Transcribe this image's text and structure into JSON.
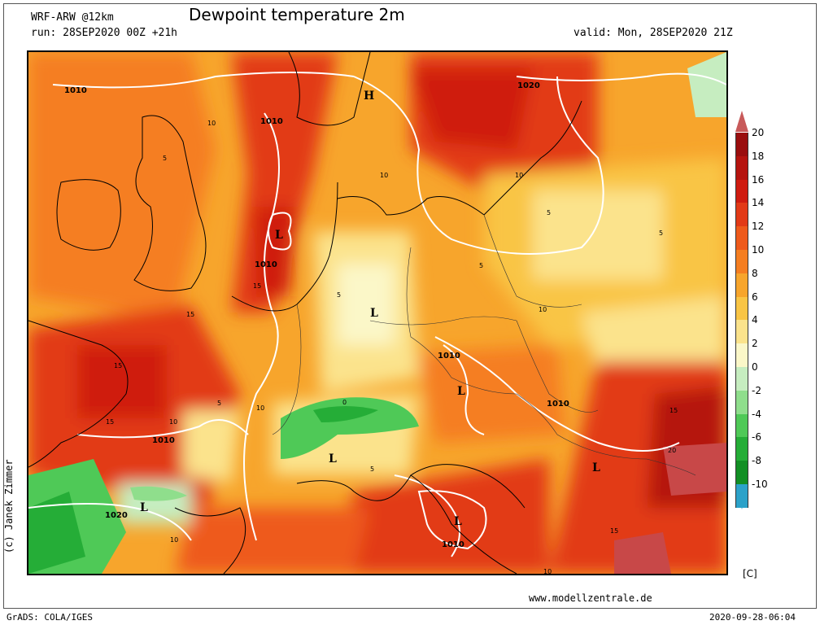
{
  "header": {
    "model": "WRF-ARW @12km",
    "title": "Dewpoint temperature 2m",
    "run": "run: 28SEP2020 00Z +21h",
    "valid": "valid: Mon, 28SEP2020 21Z"
  },
  "footer": {
    "website": "www.modellzentrale.de",
    "grads": "GrADS: COLA/IGES",
    "datetime": "2020-09-28-06:04",
    "copyright": "(c) Janek Zimmer"
  },
  "colorbar": {
    "unit": "[C]",
    "levels": [
      {
        "label": "20",
        "color": "#9a0e0e"
      },
      {
        "label": "18",
        "color": "#b5140f"
      },
      {
        "label": "16",
        "color": "#cf1c10"
      },
      {
        "label": "14",
        "color": "#e23a17"
      },
      {
        "label": "12",
        "color": "#ee5a1b"
      },
      {
        "label": "10",
        "color": "#f57e21"
      },
      {
        "label": "8",
        "color": "#f7a52c"
      },
      {
        "label": "6",
        "color": "#f9c545"
      },
      {
        "label": "4",
        "color": "#fbe38c"
      },
      {
        "label": "2",
        "color": "#fbf7c8"
      },
      {
        "label": "0",
        "color": "#c6edc0"
      },
      {
        "label": "-2",
        "color": "#8fde8c"
      },
      {
        "label": "-4",
        "color": "#4fc957"
      },
      {
        "label": "-6",
        "color": "#25ad37"
      },
      {
        "label": "-8",
        "color": "#128f24"
      },
      {
        "label": "-10",
        "color": "#2ca2c9"
      }
    ],
    "top_arrow_color": "#c85a5a",
    "bottom_arrow_color": "#3ea6cc"
  },
  "map": {
    "pressure_labels": [
      "1010",
      "1010",
      "1010",
      "1010",
      "1010",
      "1010",
      "1010",
      "1020",
      "1020",
      "1020"
    ],
    "contour_labels": [
      "10",
      "10",
      "10",
      "10",
      "10",
      "10",
      "10",
      "10",
      "15",
      "15",
      "15",
      "15",
      "15",
      "15",
      "5",
      "5",
      "5",
      "5",
      "5",
      "5",
      "5",
      "20",
      "0"
    ],
    "centers": [
      "H",
      "L",
      "L",
      "L",
      "L",
      "L",
      "L",
      "L"
    ]
  }
}
